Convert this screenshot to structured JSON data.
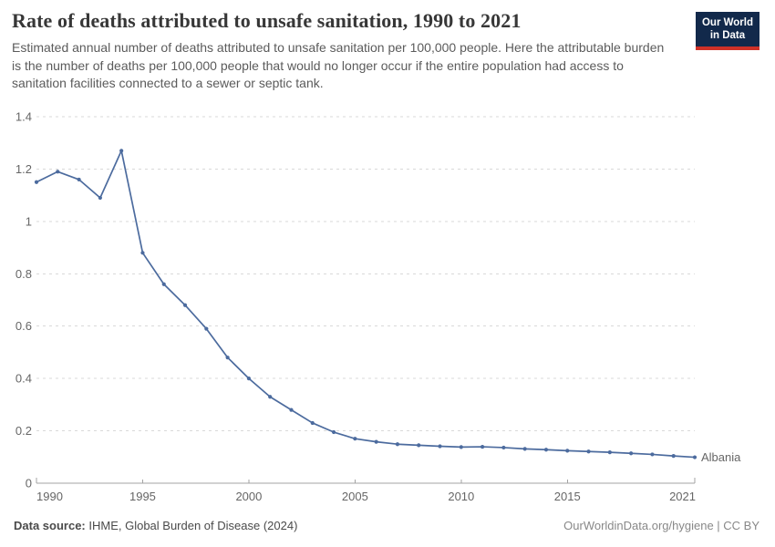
{
  "header": {
    "title": "Rate of deaths attributed to unsafe sanitation, 1990 to 2021",
    "subtitle": "Estimated annual number of deaths attributed to unsafe sanitation per 100,000 people. Here the attributable burden is the number of deaths per 100,000 people that would no longer occur if the entire population had access to sanitation facilities connected to a sewer or septic tank.",
    "logo": {
      "line1": "Our World",
      "line2": "in Data",
      "bg_color": "#12294b",
      "accent_color": "#cf3127"
    }
  },
  "chart_data": {
    "type": "line",
    "title": "Rate of deaths attributed to unsafe sanitation, 1990 to 2021",
    "xlabel": "",
    "ylabel": "",
    "x": [
      1990,
      1991,
      1992,
      1993,
      1994,
      1995,
      1996,
      1997,
      1998,
      1999,
      2000,
      2001,
      2002,
      2003,
      2004,
      2005,
      2006,
      2007,
      2008,
      2009,
      2010,
      2011,
      2012,
      2013,
      2014,
      2015,
      2016,
      2017,
      2018,
      2019,
      2020,
      2021
    ],
    "series": [
      {
        "name": "Albania",
        "color": "#4C6B9E",
        "values": [
          1.15,
          1.19,
          1.16,
          1.09,
          1.27,
          0.88,
          0.76,
          0.68,
          0.59,
          0.48,
          0.4,
          0.33,
          0.28,
          0.23,
          0.195,
          0.17,
          0.158,
          0.149,
          0.145,
          0.141,
          0.138,
          0.139,
          0.136,
          0.131,
          0.128,
          0.124,
          0.121,
          0.118,
          0.114,
          0.11,
          0.104,
          0.099
        ]
      }
    ],
    "ylim": [
      0,
      1.4
    ],
    "yticks": [
      0,
      0.2,
      0.4,
      0.6,
      0.8,
      1,
      1.2,
      1.4
    ],
    "ytick_labels": [
      "0",
      "0.2",
      "0.4",
      "0.6",
      "0.8",
      "1",
      "1.2",
      "1.4"
    ],
    "xticks": [
      1990,
      1995,
      2000,
      2005,
      2010,
      2015,
      2021
    ],
    "grid": "horizontal-dashed",
    "legend": "end-of-line-label",
    "grid_color": "#d9d9d9",
    "axis_color": "#a3a3a3",
    "tick_label_color": "#666666"
  },
  "footer": {
    "source_label": "Data source:",
    "source_rest": " IHME, Global Burden of Disease (2024)",
    "link": "OurWorldinData.org/hygiene | CC BY"
  }
}
